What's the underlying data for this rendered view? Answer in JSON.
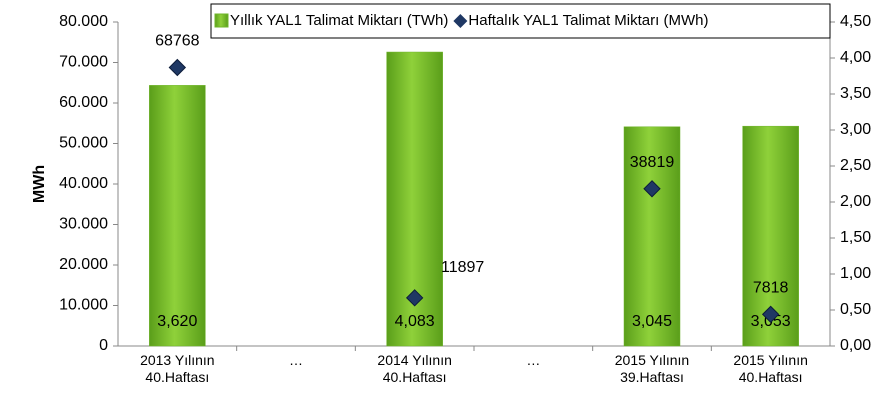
{
  "chart_data": {
    "type": "bar",
    "y_label": "MWh",
    "categories": [
      "2013 Yılının\n40.Haftası",
      "…",
      "2014 Yılının\n40.Haftası",
      "…",
      "2015 Yılının\n39.Haftası",
      "2015 Yılının\n40.Haftası"
    ],
    "series": [
      {
        "name": "Yıllık YAL1 Talimat Miktarı (TWh)",
        "type": "bar",
        "axis": "y2",
        "color": "#6fb52a",
        "values": [
          3.62,
          null,
          4.083,
          null,
          3.045,
          3.053
        ],
        "value_labels": [
          "3,620",
          null,
          "4,083",
          null,
          "3,045",
          "3,053"
        ]
      },
      {
        "name": "Haftalık YAL1 Talimat Miktarı (MWh)",
        "type": "scatter",
        "axis": "y",
        "color": "#1f3864",
        "values": [
          68768,
          null,
          11897,
          null,
          38819,
          7818
        ]
      }
    ],
    "ylim": [
      0,
      80000
    ],
    "yticks": [
      {
        "value": 0,
        "label": "0"
      },
      {
        "value": 10000,
        "label": "10.000"
      },
      {
        "value": 20000,
        "label": "20.000"
      },
      {
        "value": 30000,
        "label": "30.000"
      },
      {
        "value": 40000,
        "label": "40.000"
      },
      {
        "value": 50000,
        "label": "50.000"
      },
      {
        "value": 60000,
        "label": "60.000"
      },
      {
        "value": 70000,
        "label": "70.000"
      },
      {
        "value": 80000,
        "label": "80.000"
      }
    ],
    "y2lim": [
      0,
      4.5
    ],
    "y2ticks": [
      {
        "value": 0,
        "label": "0,00"
      },
      {
        "value": 0.5,
        "label": "0,50"
      },
      {
        "value": 1,
        "label": "1,00"
      },
      {
        "value": 1.5,
        "label": "1,50"
      },
      {
        "value": 2,
        "label": "2,00"
      },
      {
        "value": 2.5,
        "label": "2,50"
      },
      {
        "value": 3,
        "label": "3,00"
      },
      {
        "value": 3.5,
        "label": "3,50"
      },
      {
        "value": 4,
        "label": "4,00"
      },
      {
        "value": 4.5,
        "label": "4,50"
      }
    ],
    "grid": false,
    "legend": "top"
  }
}
